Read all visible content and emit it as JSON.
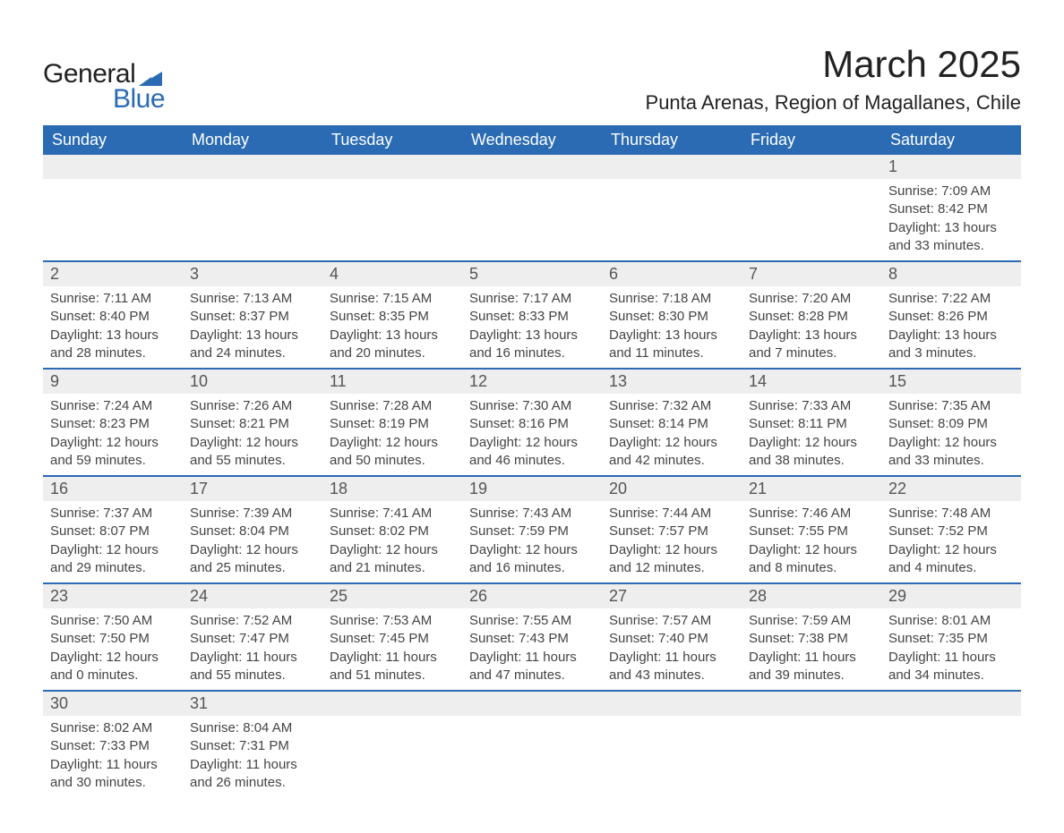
{
  "brand": {
    "name_part1": "General",
    "name_part2": "Blue",
    "color_primary": "#2a6bb3",
    "color_text": "#222222"
  },
  "header": {
    "month_title": "March 2025",
    "location": "Punta Arenas, Region of Magallanes, Chile"
  },
  "calendar": {
    "type": "table",
    "background_color": "#ffffff",
    "header_bg": "#2a6bb3",
    "header_fg": "#ffffff",
    "daynum_bg": "#eeeeee",
    "row_divider_color": "#2a6bb3",
    "font_family": "Arial",
    "header_fontsize": 18,
    "daynum_fontsize": 18,
    "body_fontsize": 15,
    "columns": [
      "Sunday",
      "Monday",
      "Tuesday",
      "Wednesday",
      "Thursday",
      "Friday",
      "Saturday"
    ],
    "weeks": [
      {
        "days": [
          null,
          null,
          null,
          null,
          null,
          null,
          {
            "n": "1",
            "sunrise": "Sunrise: 7:09 AM",
            "sunset": "Sunset: 8:42 PM",
            "dl1": "Daylight: 13 hours",
            "dl2": "and 33 minutes."
          }
        ]
      },
      {
        "days": [
          {
            "n": "2",
            "sunrise": "Sunrise: 7:11 AM",
            "sunset": "Sunset: 8:40 PM",
            "dl1": "Daylight: 13 hours",
            "dl2": "and 28 minutes."
          },
          {
            "n": "3",
            "sunrise": "Sunrise: 7:13 AM",
            "sunset": "Sunset: 8:37 PM",
            "dl1": "Daylight: 13 hours",
            "dl2": "and 24 minutes."
          },
          {
            "n": "4",
            "sunrise": "Sunrise: 7:15 AM",
            "sunset": "Sunset: 8:35 PM",
            "dl1": "Daylight: 13 hours",
            "dl2": "and 20 minutes."
          },
          {
            "n": "5",
            "sunrise": "Sunrise: 7:17 AM",
            "sunset": "Sunset: 8:33 PM",
            "dl1": "Daylight: 13 hours",
            "dl2": "and 16 minutes."
          },
          {
            "n": "6",
            "sunrise": "Sunrise: 7:18 AM",
            "sunset": "Sunset: 8:30 PM",
            "dl1": "Daylight: 13 hours",
            "dl2": "and 11 minutes."
          },
          {
            "n": "7",
            "sunrise": "Sunrise: 7:20 AM",
            "sunset": "Sunset: 8:28 PM",
            "dl1": "Daylight: 13 hours",
            "dl2": "and 7 minutes."
          },
          {
            "n": "8",
            "sunrise": "Sunrise: 7:22 AM",
            "sunset": "Sunset: 8:26 PM",
            "dl1": "Daylight: 13 hours",
            "dl2": "and 3 minutes."
          }
        ]
      },
      {
        "days": [
          {
            "n": "9",
            "sunrise": "Sunrise: 7:24 AM",
            "sunset": "Sunset: 8:23 PM",
            "dl1": "Daylight: 12 hours",
            "dl2": "and 59 minutes."
          },
          {
            "n": "10",
            "sunrise": "Sunrise: 7:26 AM",
            "sunset": "Sunset: 8:21 PM",
            "dl1": "Daylight: 12 hours",
            "dl2": "and 55 minutes."
          },
          {
            "n": "11",
            "sunrise": "Sunrise: 7:28 AM",
            "sunset": "Sunset: 8:19 PM",
            "dl1": "Daylight: 12 hours",
            "dl2": "and 50 minutes."
          },
          {
            "n": "12",
            "sunrise": "Sunrise: 7:30 AM",
            "sunset": "Sunset: 8:16 PM",
            "dl1": "Daylight: 12 hours",
            "dl2": "and 46 minutes."
          },
          {
            "n": "13",
            "sunrise": "Sunrise: 7:32 AM",
            "sunset": "Sunset: 8:14 PM",
            "dl1": "Daylight: 12 hours",
            "dl2": "and 42 minutes."
          },
          {
            "n": "14",
            "sunrise": "Sunrise: 7:33 AM",
            "sunset": "Sunset: 8:11 PM",
            "dl1": "Daylight: 12 hours",
            "dl2": "and 38 minutes."
          },
          {
            "n": "15",
            "sunrise": "Sunrise: 7:35 AM",
            "sunset": "Sunset: 8:09 PM",
            "dl1": "Daylight: 12 hours",
            "dl2": "and 33 minutes."
          }
        ]
      },
      {
        "days": [
          {
            "n": "16",
            "sunrise": "Sunrise: 7:37 AM",
            "sunset": "Sunset: 8:07 PM",
            "dl1": "Daylight: 12 hours",
            "dl2": "and 29 minutes."
          },
          {
            "n": "17",
            "sunrise": "Sunrise: 7:39 AM",
            "sunset": "Sunset: 8:04 PM",
            "dl1": "Daylight: 12 hours",
            "dl2": "and 25 minutes."
          },
          {
            "n": "18",
            "sunrise": "Sunrise: 7:41 AM",
            "sunset": "Sunset: 8:02 PM",
            "dl1": "Daylight: 12 hours",
            "dl2": "and 21 minutes."
          },
          {
            "n": "19",
            "sunrise": "Sunrise: 7:43 AM",
            "sunset": "Sunset: 7:59 PM",
            "dl1": "Daylight: 12 hours",
            "dl2": "and 16 minutes."
          },
          {
            "n": "20",
            "sunrise": "Sunrise: 7:44 AM",
            "sunset": "Sunset: 7:57 PM",
            "dl1": "Daylight: 12 hours",
            "dl2": "and 12 minutes."
          },
          {
            "n": "21",
            "sunrise": "Sunrise: 7:46 AM",
            "sunset": "Sunset: 7:55 PM",
            "dl1": "Daylight: 12 hours",
            "dl2": "and 8 minutes."
          },
          {
            "n": "22",
            "sunrise": "Sunrise: 7:48 AM",
            "sunset": "Sunset: 7:52 PM",
            "dl1": "Daylight: 12 hours",
            "dl2": "and 4 minutes."
          }
        ]
      },
      {
        "days": [
          {
            "n": "23",
            "sunrise": "Sunrise: 7:50 AM",
            "sunset": "Sunset: 7:50 PM",
            "dl1": "Daylight: 12 hours",
            "dl2": "and 0 minutes."
          },
          {
            "n": "24",
            "sunrise": "Sunrise: 7:52 AM",
            "sunset": "Sunset: 7:47 PM",
            "dl1": "Daylight: 11 hours",
            "dl2": "and 55 minutes."
          },
          {
            "n": "25",
            "sunrise": "Sunrise: 7:53 AM",
            "sunset": "Sunset: 7:45 PM",
            "dl1": "Daylight: 11 hours",
            "dl2": "and 51 minutes."
          },
          {
            "n": "26",
            "sunrise": "Sunrise: 7:55 AM",
            "sunset": "Sunset: 7:43 PM",
            "dl1": "Daylight: 11 hours",
            "dl2": "and 47 minutes."
          },
          {
            "n": "27",
            "sunrise": "Sunrise: 7:57 AM",
            "sunset": "Sunset: 7:40 PM",
            "dl1": "Daylight: 11 hours",
            "dl2": "and 43 minutes."
          },
          {
            "n": "28",
            "sunrise": "Sunrise: 7:59 AM",
            "sunset": "Sunset: 7:38 PM",
            "dl1": "Daylight: 11 hours",
            "dl2": "and 39 minutes."
          },
          {
            "n": "29",
            "sunrise": "Sunrise: 8:01 AM",
            "sunset": "Sunset: 7:35 PM",
            "dl1": "Daylight: 11 hours",
            "dl2": "and 34 minutes."
          }
        ]
      },
      {
        "days": [
          {
            "n": "30",
            "sunrise": "Sunrise: 8:02 AM",
            "sunset": "Sunset: 7:33 PM",
            "dl1": "Daylight: 11 hours",
            "dl2": "and 30 minutes."
          },
          {
            "n": "31",
            "sunrise": "Sunrise: 8:04 AM",
            "sunset": "Sunset: 7:31 PM",
            "dl1": "Daylight: 11 hours",
            "dl2": "and 26 minutes."
          },
          null,
          null,
          null,
          null,
          null
        ]
      }
    ]
  }
}
